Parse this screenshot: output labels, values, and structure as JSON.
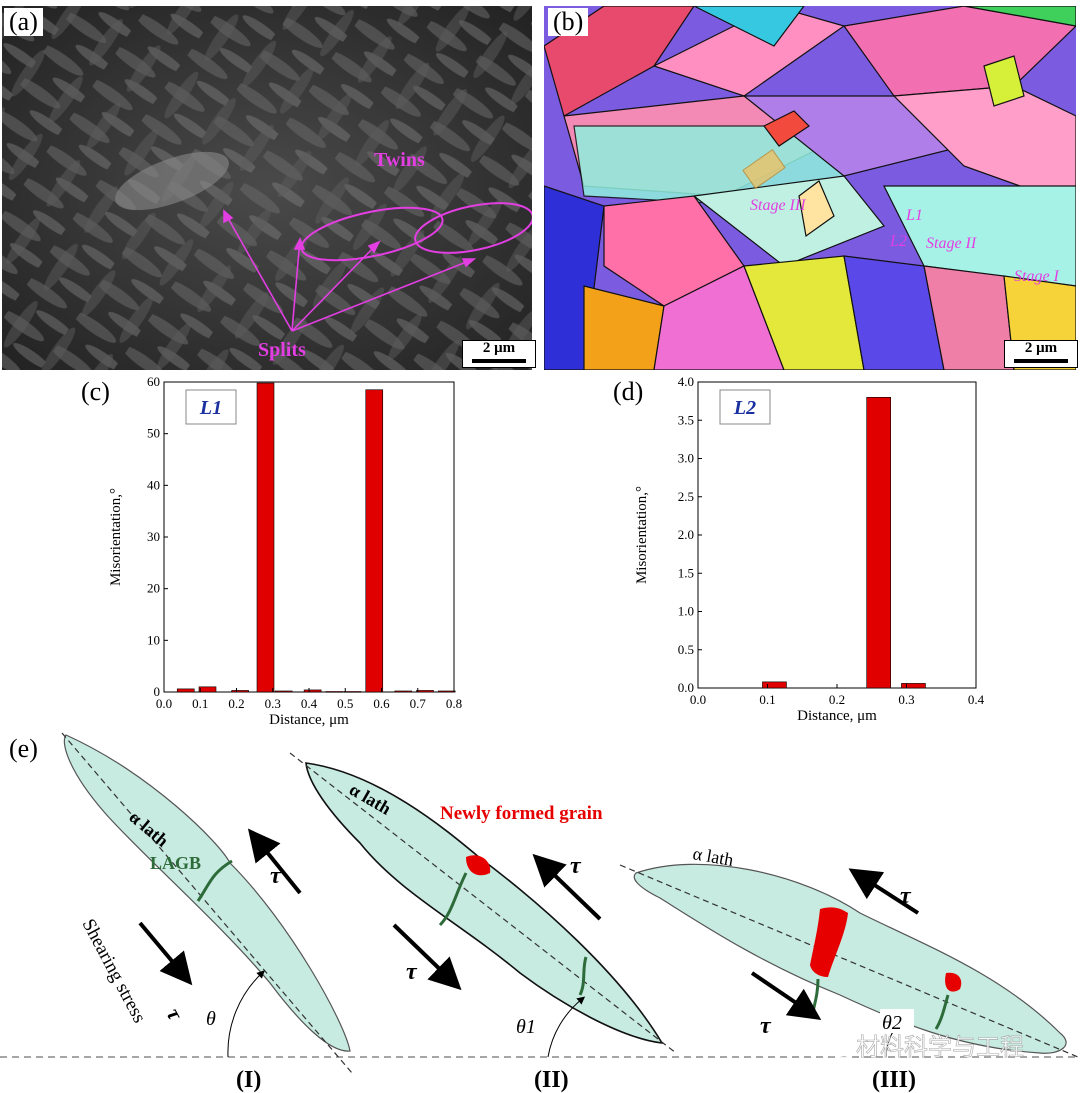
{
  "panels": {
    "a": {
      "label": "(a)",
      "annotations": {
        "twins": "Twins",
        "splits": "Splits"
      },
      "scale_bar": "2 μm"
    },
    "b": {
      "label": "(b)",
      "annotations": {
        "stage3": "Stage III",
        "stage2": "Stage II",
        "stage1": "Stage I",
        "l1": "L1",
        "l2": "L2"
      },
      "scale_bar": "2 μm"
    },
    "c": {
      "label": "(c)",
      "line_tag": "L1"
    },
    "d": {
      "label": "(d)",
      "line_tag": "L2"
    },
    "e": {
      "label": "(e)",
      "alpha_lath": "α lath",
      "lagb": "LAGB",
      "shearing": "Shearing stress",
      "tau": "τ",
      "new_grain": "Newly formed grain",
      "theta": "θ",
      "theta1": "θ1",
      "theta2": "θ2",
      "stages": [
        "(I)",
        "(II)",
        "(III)"
      ]
    }
  },
  "watermark": "材料科学与工程",
  "colors": {
    "accent": "#cc22cc",
    "bar": "#e00000",
    "tag": "#1a2fa0",
    "lath_fill": "#c7ebe0",
    "lagb": "#2e6b3a"
  },
  "chart_data": [
    {
      "type": "bar",
      "xlabel": "Distance, μm",
      "ylabel": "Misorientation,°",
      "xlim": [
        0.0,
        0.8
      ],
      "ylim": [
        0,
        60
      ],
      "xticks": [
        "0.0",
        "0.1",
        "0.2",
        "0.3",
        "0.4",
        "0.5",
        "0.6",
        "0.7",
        "0.8"
      ],
      "yticks": [
        "0",
        "10",
        "20",
        "30",
        "40",
        "50",
        "60"
      ],
      "x": [
        0.06,
        0.12,
        0.21,
        0.28,
        0.33,
        0.41,
        0.47,
        0.52,
        0.58,
        0.66,
        0.72,
        0.78
      ],
      "values": [
        0.6,
        1.0,
        0.3,
        59.8,
        0.2,
        0.4,
        0.1,
        0.1,
        58.5,
        0.2,
        0.3,
        0.2
      ]
    },
    {
      "type": "bar",
      "xlabel": "Distance, μm",
      "ylabel": "Misorientation,°",
      "xlim": [
        0.0,
        0.4
      ],
      "ylim": [
        0.0,
        4.0
      ],
      "xticks": [
        "0.0",
        "0.1",
        "0.2",
        "0.3",
        "0.4"
      ],
      "yticks": [
        "0.0",
        "0.5",
        "1.0",
        "1.5",
        "2.0",
        "2.5",
        "3.0",
        "3.5",
        "4.0"
      ],
      "x": [
        0.11,
        0.26,
        0.31
      ],
      "values": [
        0.08,
        3.8,
        0.06
      ]
    }
  ]
}
